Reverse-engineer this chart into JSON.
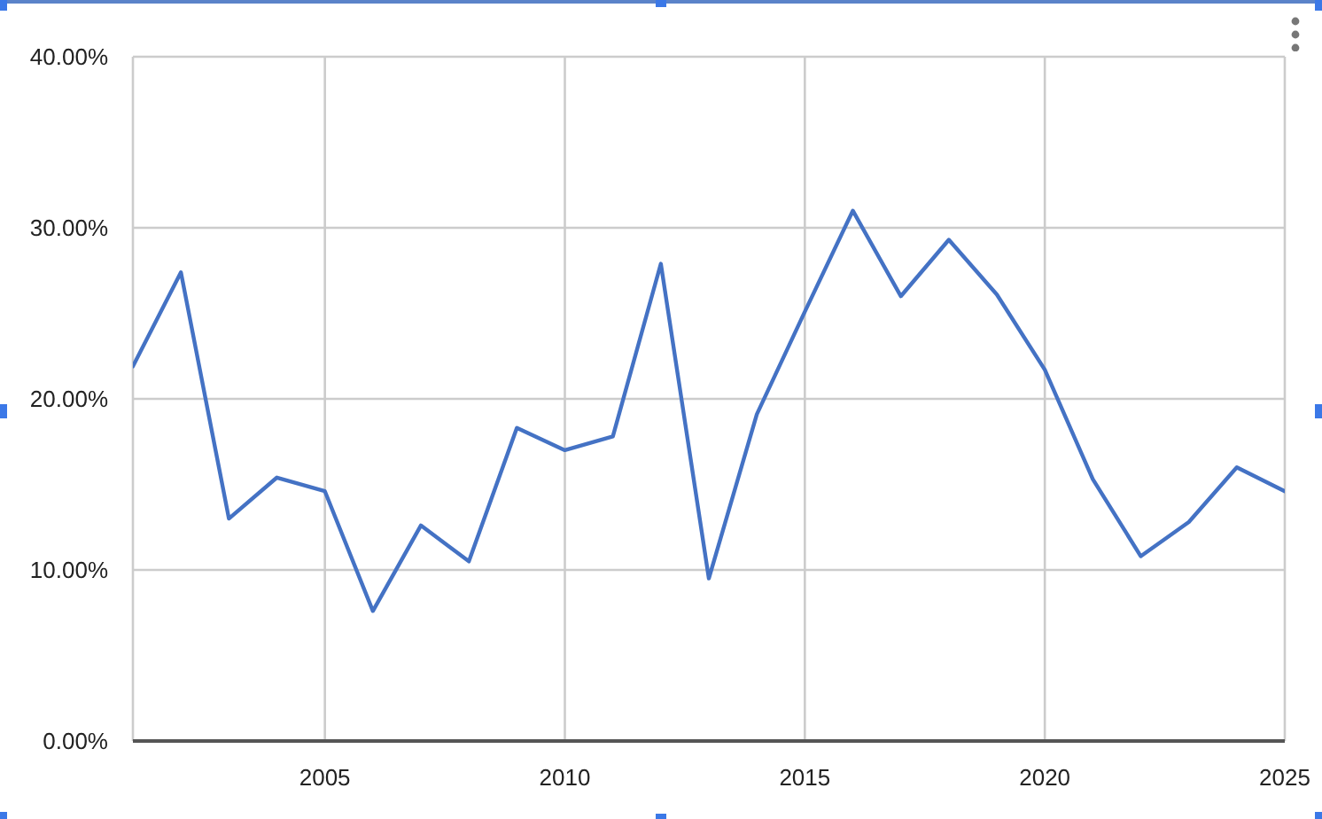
{
  "chart_data": {
    "type": "line",
    "x": [
      2001,
      2002,
      2003,
      2004,
      2005,
      2006,
      2007,
      2008,
      2009,
      2010,
      2011,
      2012,
      2013,
      2014,
      2015,
      2016,
      2017,
      2018,
      2019,
      2020,
      2021,
      2022,
      2023,
      2024,
      2025
    ],
    "values": [
      21.9,
      27.4,
      13.0,
      15.4,
      14.6,
      7.6,
      12.6,
      10.5,
      18.3,
      17.0,
      17.8,
      27.9,
      9.5,
      19.1,
      25.1,
      31.0,
      26.0,
      29.3,
      26.1,
      21.7,
      15.3,
      10.8,
      12.8,
      16.0,
      14.6
    ],
    "color": "#4472c4",
    "xlim": [
      2001,
      2025
    ],
    "xticks": [
      2005,
      2010,
      2015,
      2020,
      2025
    ],
    "ylim": [
      0,
      40
    ],
    "yticks": [
      {
        "value": 0,
        "label": "0.00%"
      },
      {
        "value": 10,
        "label": "10.00%"
      },
      {
        "value": 20,
        "label": "20.00%"
      },
      {
        "value": 30,
        "label": "30.00%"
      },
      {
        "value": 40,
        "label": "40.00%"
      }
    ],
    "grid": true,
    "line_style": "solid"
  }
}
